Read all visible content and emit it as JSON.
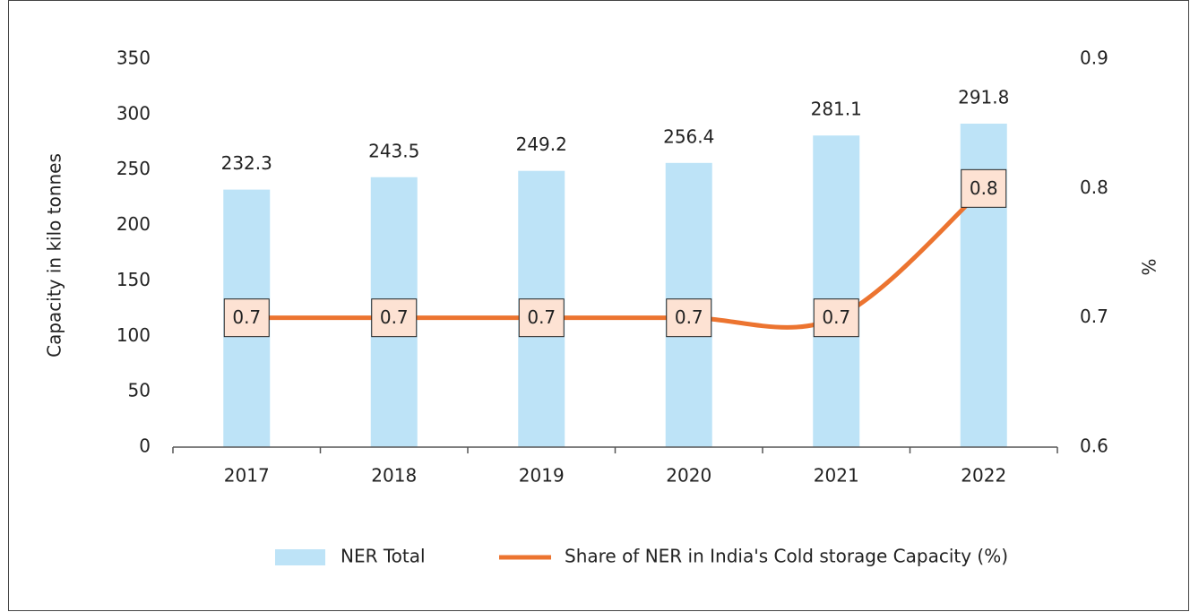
{
  "chart_data": {
    "type": "bar_line",
    "categories": [
      "2017",
      "2018",
      "2019",
      "2020",
      "2021",
      "2022"
    ],
    "series": [
      {
        "name": "NER Total",
        "type": "bar",
        "color": "#bde3f7",
        "values": [
          232.3,
          243.5,
          249.2,
          256.4,
          281.1,
          291.8
        ]
      },
      {
        "name": "Share of NER in India's Cold storage Capacity (%)",
        "type": "line",
        "axis": "y2",
        "color": "#ec7430",
        "values": [
          0.7,
          0.7,
          0.7,
          0.7,
          0.7,
          0.8
        ]
      }
    ],
    "ylabel": "Capacity in kilo tonnes",
    "y2label": "%",
    "ylim": [
      0,
      350
    ],
    "yticks": [
      0,
      50,
      100,
      150,
      200,
      250,
      300,
      350
    ],
    "y2lim": [
      0.6,
      0.9
    ],
    "y2ticks": [
      0.6,
      0.7,
      0.8,
      0.9
    ],
    "legend": "bottom",
    "grid": false
  }
}
